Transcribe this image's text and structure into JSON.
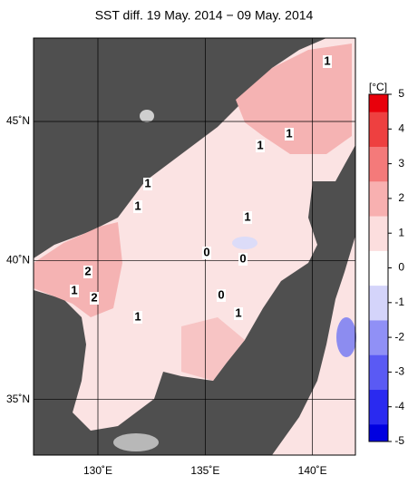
{
  "title": "SST diff. 19 May. 2014 − 09 May. 2014",
  "map": {
    "lonlim": [
      127,
      142
    ],
    "latlim": [
      33,
      48
    ],
    "lonticks": [
      {
        "value": 130,
        "label": "130˚E"
      },
      {
        "value": 135,
        "label": "135˚E"
      },
      {
        "value": 140,
        "label": "140˚E"
      }
    ],
    "latticks": [
      {
        "value": 45,
        "label": "45˚N"
      },
      {
        "value": 40,
        "label": "40˚N"
      },
      {
        "value": 35,
        "label": "35˚N"
      }
    ],
    "contour_labels": [
      "1",
      "1",
      "1",
      "1",
      "1",
      "1",
      "0",
      "0",
      "2",
      "1",
      "2",
      "0",
      "1",
      "1"
    ]
  },
  "colorbar": {
    "unit": "[°C]",
    "lim": [
      -5,
      5
    ],
    "ticks": [
      5,
      4,
      3,
      2,
      1,
      0,
      -1,
      -2,
      -3,
      -4,
      -5
    ]
  }
}
